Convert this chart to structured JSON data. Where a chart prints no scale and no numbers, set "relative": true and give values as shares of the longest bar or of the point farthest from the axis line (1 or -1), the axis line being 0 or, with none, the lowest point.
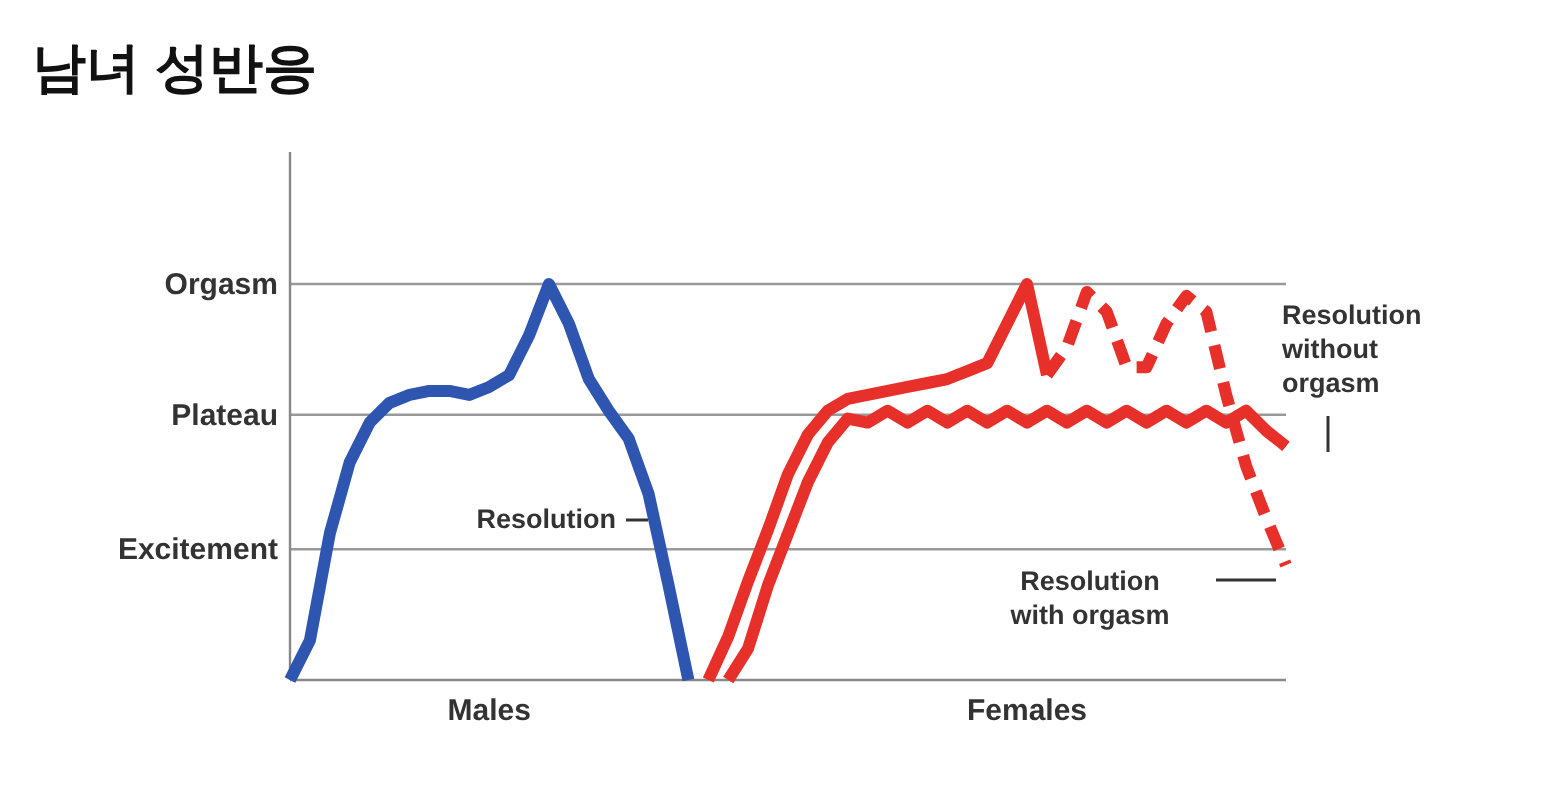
{
  "chart_data": {
    "type": "line",
    "title": "남녀 성반응",
    "relative": true,
    "categories": [
      null,
      null,
      null,
      null,
      null,
      null,
      null,
      null,
      null,
      null,
      "Males",
      null,
      null,
      null,
      null,
      null,
      null,
      null,
      null,
      null,
      null,
      null,
      null,
      null,
      null,
      null,
      null,
      null,
      null,
      null,
      null,
      null,
      null,
      null,
      null,
      null,
      null,
      "Females",
      null,
      null,
      null,
      null,
      null,
      null,
      null,
      null,
      null,
      null,
      null,
      null,
      null
    ],
    "ref_lines": [
      {
        "axis": "y",
        "value": 0.33,
        "label": "Excitement"
      },
      {
        "axis": "y",
        "value": 0.67,
        "label": "Plateau"
      },
      {
        "axis": "y",
        "value": 1,
        "label": "Orgasm"
      }
    ],
    "series": [
      {
        "color": "#2e56b0",
        "line_style": "solid",
        "values": [
          0,
          0.1,
          0.37,
          0.55,
          0.65,
          0.7,
          0.72,
          0.73,
          0.73,
          0.72,
          0.74,
          0.77,
          0.87,
          1,
          0.9,
          0.76,
          0.68,
          0.61,
          0.47,
          0.24,
          0,
          null,
          null,
          null,
          null,
          null,
          null,
          null,
          null,
          null,
          null,
          null,
          null,
          null,
          null,
          null,
          null,
          null,
          null,
          null,
          null,
          null,
          null,
          null,
          null,
          null,
          null,
          null,
          null,
          null,
          null
        ]
      },
      {
        "color": "#e8302a",
        "line_style": "solid",
        "values": [
          null,
          null,
          null,
          null,
          null,
          null,
          null,
          null,
          null,
          null,
          null,
          null,
          null,
          null,
          null,
          null,
          null,
          null,
          null,
          null,
          null,
          0,
          0.11,
          0.25,
          0.38,
          0.52,
          0.62,
          0.68,
          0.71,
          0.72,
          0.73,
          0.74,
          0.75,
          0.76,
          0.78,
          0.8,
          0.9,
          1,
          0.77,
          null,
          null,
          null,
          null,
          null,
          null,
          null,
          null,
          null,
          null,
          null,
          null
        ]
      },
      {
        "color": "#e8302a",
        "line_style": "dashed",
        "values": [
          null,
          null,
          null,
          null,
          null,
          null,
          null,
          null,
          null,
          null,
          null,
          null,
          null,
          null,
          null,
          null,
          null,
          null,
          null,
          null,
          null,
          null,
          null,
          null,
          null,
          null,
          null,
          null,
          null,
          null,
          null,
          null,
          null,
          null,
          null,
          null,
          null,
          null,
          0.77,
          0.84,
          0.98,
          0.93,
          0.79,
          0.79,
          0.9,
          0.97,
          0.93,
          0.72,
          0.54,
          0.41,
          0.29
        ]
      },
      {
        "color": "#e8302a",
        "line_style": "solid",
        "values": [
          null,
          null,
          null,
          null,
          null,
          null,
          null,
          null,
          null,
          null,
          null,
          null,
          null,
          null,
          null,
          null,
          null,
          null,
          null,
          null,
          null,
          null,
          0,
          0.08,
          0.24,
          0.37,
          0.5,
          0.6,
          0.66,
          0.65,
          0.68,
          0.65,
          0.68,
          0.65,
          0.68,
          0.65,
          0.68,
          0.65,
          0.68,
          0.65,
          0.68,
          0.65,
          0.68,
          0.65,
          0.68,
          0.65,
          0.68,
          0.65,
          0.68,
          0.63,
          0.59
        ]
      }
    ],
    "annotations": [
      "Resolution",
      "Resolution\nwith orgasm",
      "Resolution\nwithout\norgasm"
    ]
  }
}
